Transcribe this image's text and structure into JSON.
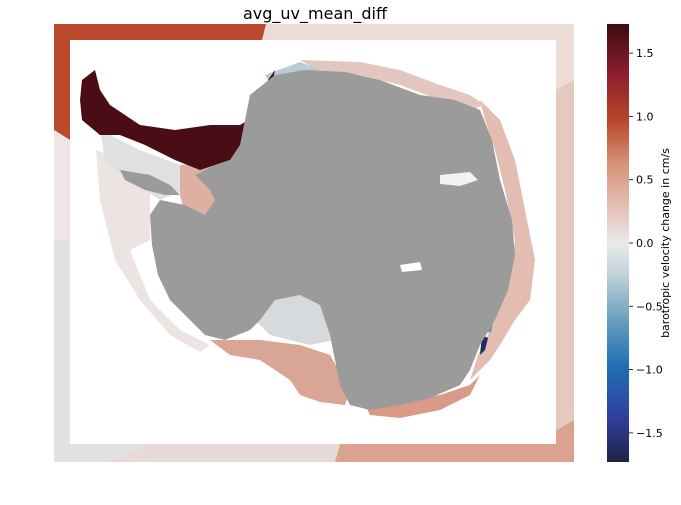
{
  "title": "avg_uv_mean_diff",
  "colorbar": {
    "label": "barotropic velocity change in cm/s",
    "ticks": [
      "1.5",
      "1.0",
      "0.5",
      "0.0",
      "−0.5",
      "−1.0",
      "−1.5"
    ],
    "tick_values": [
      1.5,
      1.0,
      0.5,
      0.0,
      -0.5,
      -1.0,
      -1.5
    ],
    "range": [
      -1.73,
      1.73
    ],
    "colors": [
      "#1f2246",
      "#2f3f9c",
      "#1f6fb5",
      "#6ea2bd",
      "#c2d3da",
      "#e9e9e9",
      "#e6c6bd",
      "#d79378",
      "#b8462a",
      "#8a1d2c",
      "#3b0c12"
    ]
  },
  "map": {
    "land_color": "#9b9b9b",
    "frame_color": "#ffffff"
  }
}
